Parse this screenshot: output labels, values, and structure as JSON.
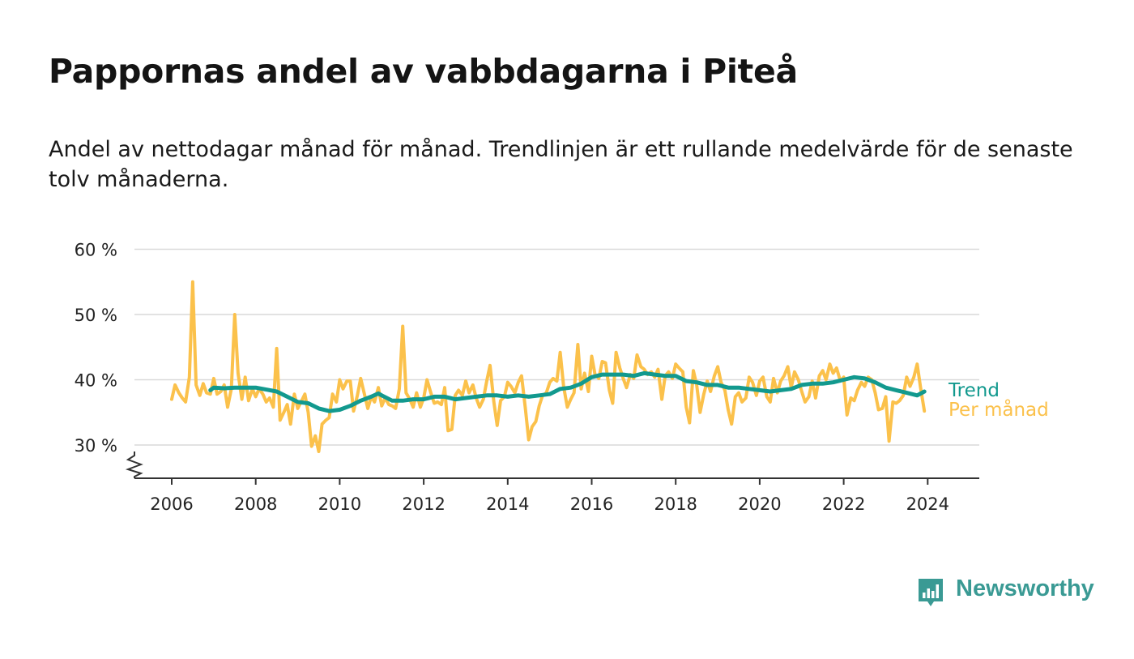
{
  "title": "Pappornas andel av vabbdagarna i Piteå",
  "subtitle": "Andel av nettodagar månad för månad. Trendlinjen är ett rullande medelvärde för de senaste tolv månaderna.",
  "brand": {
    "name": "Newsworthy",
    "icon": "newsworthy-logo-icon",
    "color": "#3a9a94"
  },
  "chart_data": {
    "type": "line",
    "title": "Pappornas andel av vabbdagarna i Piteå",
    "subtitle": "Andel av nettodagar månad för månad. Trendlinjen är ett rullande medelvärde för de senaste tolv månaderna.",
    "xlabel": "",
    "ylabel": "",
    "xlim": [
      2005.1,
      2025.25
    ],
    "ylim": [
      25,
      60
    ],
    "y_axis_break": true,
    "grid": "horizontal",
    "legend": "inline-right",
    "x_ticks": [
      {
        "value": 2006,
        "label": "2006"
      },
      {
        "value": 2008,
        "label": "2008"
      },
      {
        "value": 2010,
        "label": "2010"
      },
      {
        "value": 2012,
        "label": "2012"
      },
      {
        "value": 2014,
        "label": "2014"
      },
      {
        "value": 2016,
        "label": "2016"
      },
      {
        "value": 2018,
        "label": "2018"
      },
      {
        "value": 2020,
        "label": "2020"
      },
      {
        "value": 2022,
        "label": "2022"
      },
      {
        "value": 2024,
        "label": "2024"
      }
    ],
    "y_ticks": [
      {
        "value": 30,
        "label": "30 %"
      },
      {
        "value": 40,
        "label": "40 %"
      },
      {
        "value": 50,
        "label": "50 %"
      },
      {
        "value": 60,
        "label": "60 %"
      }
    ],
    "series": [
      {
        "name": "Per månad",
        "color": "#fbc14b",
        "points": [
          [
            2006.0,
            37.0
          ],
          [
            2006.08,
            39.2
          ],
          [
            2006.17,
            38.0
          ],
          [
            2006.25,
            37.2
          ],
          [
            2006.33,
            36.6
          ],
          [
            2006.42,
            40.4
          ],
          [
            2006.5,
            55.0
          ],
          [
            2006.58,
            39.2
          ],
          [
            2006.67,
            37.6
          ],
          [
            2006.75,
            39.4
          ],
          [
            2006.83,
            38.0
          ],
          [
            2006.92,
            37.8
          ],
          [
            2007.0,
            40.2
          ],
          [
            2007.08,
            37.8
          ],
          [
            2007.17,
            38.2
          ],
          [
            2007.25,
            39.2
          ],
          [
            2007.33,
            35.8
          ],
          [
            2007.42,
            38.6
          ],
          [
            2007.5,
            50.0
          ],
          [
            2007.58,
            41.0
          ],
          [
            2007.67,
            37.0
          ],
          [
            2007.75,
            40.4
          ],
          [
            2007.83,
            36.8
          ],
          [
            2007.92,
            38.6
          ],
          [
            2008.0,
            37.4
          ],
          [
            2008.08,
            38.6
          ],
          [
            2008.17,
            37.8
          ],
          [
            2008.25,
            36.6
          ],
          [
            2008.33,
            37.2
          ],
          [
            2008.42,
            35.8
          ],
          [
            2008.5,
            44.8
          ],
          [
            2008.58,
            33.8
          ],
          [
            2008.67,
            35.0
          ],
          [
            2008.75,
            36.2
          ],
          [
            2008.83,
            33.2
          ],
          [
            2008.92,
            37.8
          ],
          [
            2009.0,
            35.6
          ],
          [
            2009.08,
            36.6
          ],
          [
            2009.17,
            37.8
          ],
          [
            2009.25,
            35.0
          ],
          [
            2009.33,
            29.8
          ],
          [
            2009.42,
            31.4
          ],
          [
            2009.5,
            29.0
          ],
          [
            2009.58,
            33.2
          ],
          [
            2009.67,
            33.8
          ],
          [
            2009.75,
            34.2
          ],
          [
            2009.83,
            37.8
          ],
          [
            2009.92,
            36.6
          ],
          [
            2010.0,
            40.0
          ],
          [
            2010.08,
            38.6
          ],
          [
            2010.17,
            39.8
          ],
          [
            2010.25,
            39.8
          ],
          [
            2010.33,
            35.2
          ],
          [
            2010.42,
            37.6
          ],
          [
            2010.5,
            40.2
          ],
          [
            2010.58,
            38.0
          ],
          [
            2010.67,
            35.6
          ],
          [
            2010.75,
            37.4
          ],
          [
            2010.83,
            36.6
          ],
          [
            2010.92,
            38.8
          ],
          [
            2011.0,
            36.0
          ],
          [
            2011.08,
            37.2
          ],
          [
            2011.17,
            36.2
          ],
          [
            2011.25,
            36.0
          ],
          [
            2011.33,
            35.6
          ],
          [
            2011.42,
            38.6
          ],
          [
            2011.5,
            48.2
          ],
          [
            2011.58,
            38.0
          ],
          [
            2011.67,
            37.0
          ],
          [
            2011.75,
            35.8
          ],
          [
            2011.83,
            38.0
          ],
          [
            2011.92,
            35.8
          ],
          [
            2012.0,
            37.2
          ],
          [
            2012.08,
            40.0
          ],
          [
            2012.17,
            38.0
          ],
          [
            2012.25,
            36.4
          ],
          [
            2012.33,
            36.6
          ],
          [
            2012.42,
            36.2
          ],
          [
            2012.5,
            38.8
          ],
          [
            2012.58,
            32.2
          ],
          [
            2012.67,
            32.4
          ],
          [
            2012.75,
            37.6
          ],
          [
            2012.83,
            38.4
          ],
          [
            2012.92,
            37.6
          ],
          [
            2013.0,
            39.8
          ],
          [
            2013.08,
            38.0
          ],
          [
            2013.17,
            39.2
          ],
          [
            2013.25,
            37.2
          ],
          [
            2013.33,
            35.8
          ],
          [
            2013.42,
            37.0
          ],
          [
            2013.5,
            39.8
          ],
          [
            2013.58,
            42.2
          ],
          [
            2013.67,
            36.6
          ],
          [
            2013.75,
            33.0
          ],
          [
            2013.83,
            36.8
          ],
          [
            2013.92,
            37.4
          ],
          [
            2014.0,
            39.6
          ],
          [
            2014.08,
            39.0
          ],
          [
            2014.17,
            38.0
          ],
          [
            2014.25,
            39.6
          ],
          [
            2014.33,
            40.6
          ],
          [
            2014.42,
            35.6
          ],
          [
            2014.5,
            30.8
          ],
          [
            2014.58,
            32.8
          ],
          [
            2014.67,
            33.6
          ],
          [
            2014.75,
            36.0
          ],
          [
            2014.83,
            37.6
          ],
          [
            2014.92,
            38.0
          ],
          [
            2015.0,
            39.6
          ],
          [
            2015.08,
            40.2
          ],
          [
            2015.17,
            39.8
          ],
          [
            2015.25,
            44.2
          ],
          [
            2015.33,
            39.0
          ],
          [
            2015.42,
            35.8
          ],
          [
            2015.5,
            37.0
          ],
          [
            2015.58,
            38.0
          ],
          [
            2015.67,
            45.4
          ],
          [
            2015.75,
            38.6
          ],
          [
            2015.83,
            41.0
          ],
          [
            2015.92,
            38.2
          ],
          [
            2016.0,
            43.6
          ],
          [
            2016.08,
            40.8
          ],
          [
            2016.17,
            40.2
          ],
          [
            2016.25,
            42.8
          ],
          [
            2016.33,
            42.6
          ],
          [
            2016.42,
            38.4
          ],
          [
            2016.5,
            36.4
          ],
          [
            2016.58,
            44.2
          ],
          [
            2016.67,
            41.8
          ],
          [
            2016.75,
            40.2
          ],
          [
            2016.83,
            38.8
          ],
          [
            2016.92,
            40.8
          ],
          [
            2017.0,
            40.2
          ],
          [
            2017.08,
            43.8
          ],
          [
            2017.17,
            42.0
          ],
          [
            2017.25,
            41.6
          ],
          [
            2017.33,
            40.8
          ],
          [
            2017.42,
            41.2
          ],
          [
            2017.5,
            40.4
          ],
          [
            2017.58,
            41.6
          ],
          [
            2017.67,
            37.0
          ],
          [
            2017.75,
            40.6
          ],
          [
            2017.83,
            41.2
          ],
          [
            2017.92,
            40.2
          ],
          [
            2018.0,
            42.4
          ],
          [
            2018.08,
            41.8
          ],
          [
            2018.17,
            41.2
          ],
          [
            2018.25,
            35.8
          ],
          [
            2018.33,
            33.4
          ],
          [
            2018.42,
            41.4
          ],
          [
            2018.5,
            39.2
          ],
          [
            2018.58,
            35.0
          ],
          [
            2018.67,
            37.8
          ],
          [
            2018.75,
            39.8
          ],
          [
            2018.83,
            38.2
          ],
          [
            2018.92,
            40.6
          ],
          [
            2019.0,
            42.0
          ],
          [
            2019.08,
            39.6
          ],
          [
            2019.17,
            38.4
          ],
          [
            2019.25,
            35.4
          ],
          [
            2019.33,
            33.2
          ],
          [
            2019.42,
            37.4
          ],
          [
            2019.5,
            38.0
          ],
          [
            2019.58,
            36.6
          ],
          [
            2019.67,
            37.2
          ],
          [
            2019.75,
            40.4
          ],
          [
            2019.83,
            39.6
          ],
          [
            2019.92,
            37.6
          ],
          [
            2020.0,
            39.8
          ],
          [
            2020.08,
            40.4
          ],
          [
            2020.17,
            37.4
          ],
          [
            2020.25,
            36.6
          ],
          [
            2020.33,
            40.2
          ],
          [
            2020.42,
            38.0
          ],
          [
            2020.5,
            39.8
          ],
          [
            2020.58,
            40.6
          ],
          [
            2020.67,
            42.0
          ],
          [
            2020.75,
            38.8
          ],
          [
            2020.83,
            41.2
          ],
          [
            2020.92,
            40.0
          ],
          [
            2021.0,
            38.2
          ],
          [
            2021.08,
            36.6
          ],
          [
            2021.17,
            37.4
          ],
          [
            2021.25,
            39.8
          ],
          [
            2021.33,
            37.2
          ],
          [
            2021.42,
            40.6
          ],
          [
            2021.5,
            41.4
          ],
          [
            2021.58,
            40.0
          ],
          [
            2021.67,
            42.4
          ],
          [
            2021.75,
            41.0
          ],
          [
            2021.83,
            41.8
          ],
          [
            2021.92,
            39.8
          ],
          [
            2022.0,
            40.4
          ],
          [
            2022.08,
            34.6
          ],
          [
            2022.17,
            37.2
          ],
          [
            2022.25,
            36.8
          ],
          [
            2022.33,
            38.4
          ],
          [
            2022.42,
            39.6
          ],
          [
            2022.5,
            39.0
          ],
          [
            2022.58,
            40.4
          ],
          [
            2022.67,
            40.0
          ],
          [
            2022.75,
            38.0
          ],
          [
            2022.83,
            35.4
          ],
          [
            2022.92,
            35.6
          ],
          [
            2023.0,
            37.4
          ],
          [
            2023.08,
            30.6
          ],
          [
            2023.17,
            36.6
          ],
          [
            2023.25,
            36.4
          ],
          [
            2023.33,
            36.8
          ],
          [
            2023.42,
            37.6
          ],
          [
            2023.5,
            40.4
          ],
          [
            2023.58,
            39.0
          ],
          [
            2023.67,
            40.4
          ],
          [
            2023.75,
            42.4
          ],
          [
            2023.83,
            38.8
          ],
          [
            2023.92,
            35.2
          ]
        ]
      },
      {
        "name": "Trend",
        "color": "#12998e",
        "points": [
          [
            2006.92,
            38.4
          ],
          [
            2007.0,
            38.8
          ],
          [
            2007.25,
            38.7
          ],
          [
            2007.5,
            38.8
          ],
          [
            2007.75,
            38.8
          ],
          [
            2008.0,
            38.8
          ],
          [
            2008.25,
            38.5
          ],
          [
            2008.5,
            38.2
          ],
          [
            2008.75,
            37.4
          ],
          [
            2009.0,
            36.6
          ],
          [
            2009.25,
            36.4
          ],
          [
            2009.5,
            35.6
          ],
          [
            2009.75,
            35.2
          ],
          [
            2010.0,
            35.4
          ],
          [
            2010.25,
            36.0
          ],
          [
            2010.5,
            36.8
          ],
          [
            2010.75,
            37.4
          ],
          [
            2010.92,
            37.9
          ],
          [
            2011.0,
            37.6
          ],
          [
            2011.25,
            36.8
          ],
          [
            2011.5,
            36.8
          ],
          [
            2011.75,
            37.0
          ],
          [
            2012.0,
            37.0
          ],
          [
            2012.25,
            37.4
          ],
          [
            2012.5,
            37.4
          ],
          [
            2012.75,
            37.0
          ],
          [
            2013.0,
            37.2
          ],
          [
            2013.25,
            37.4
          ],
          [
            2013.5,
            37.6
          ],
          [
            2013.75,
            37.6
          ],
          [
            2014.0,
            37.4
          ],
          [
            2014.25,
            37.6
          ],
          [
            2014.5,
            37.4
          ],
          [
            2014.75,
            37.6
          ],
          [
            2015.0,
            37.8
          ],
          [
            2015.25,
            38.6
          ],
          [
            2015.5,
            38.8
          ],
          [
            2015.75,
            39.4
          ],
          [
            2016.0,
            40.4
          ],
          [
            2016.25,
            40.8
          ],
          [
            2016.5,
            40.8
          ],
          [
            2016.75,
            40.8
          ],
          [
            2017.0,
            40.6
          ],
          [
            2017.25,
            41.0
          ],
          [
            2017.5,
            40.8
          ],
          [
            2017.75,
            40.6
          ],
          [
            2018.0,
            40.6
          ],
          [
            2018.25,
            39.8
          ],
          [
            2018.5,
            39.6
          ],
          [
            2018.75,
            39.2
          ],
          [
            2019.0,
            39.2
          ],
          [
            2019.25,
            38.8
          ],
          [
            2019.5,
            38.8
          ],
          [
            2019.75,
            38.6
          ],
          [
            2020.0,
            38.4
          ],
          [
            2020.25,
            38.2
          ],
          [
            2020.5,
            38.4
          ],
          [
            2020.75,
            38.6
          ],
          [
            2021.0,
            39.2
          ],
          [
            2021.25,
            39.4
          ],
          [
            2021.5,
            39.4
          ],
          [
            2021.75,
            39.6
          ],
          [
            2022.0,
            40.0
          ],
          [
            2022.25,
            40.4
          ],
          [
            2022.5,
            40.2
          ],
          [
            2022.75,
            39.6
          ],
          [
            2023.0,
            38.8
          ],
          [
            2023.25,
            38.4
          ],
          [
            2023.5,
            38.0
          ],
          [
            2023.75,
            37.6
          ],
          [
            2023.92,
            38.2
          ]
        ]
      }
    ]
  }
}
